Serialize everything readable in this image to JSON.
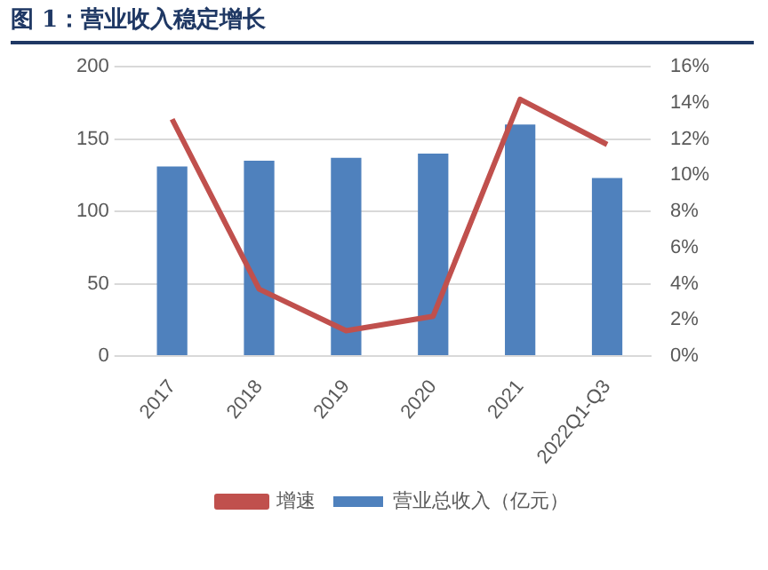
{
  "chart_data": {
    "type": "bar",
    "title": "图 1：营业收入稳定增长",
    "categories": [
      "2017",
      "2018",
      "2019",
      "2020",
      "2021",
      "2022Q1-Q3"
    ],
    "series": [
      {
        "name": "营业总收入（亿元）",
        "color": "#4f81bd",
        "values": [
          131,
          135,
          137,
          140,
          160,
          123
        ]
      },
      {
        "name": "增速",
        "type": "line",
        "axis": "y2",
        "color": "#c0504d",
        "values": [
          13.1,
          3.7,
          1.4,
          2.2,
          14.2,
          11.7
        ]
      }
    ],
    "ylim": [
      0,
      200
    ],
    "yticks": [
      0,
      50,
      100,
      150,
      200
    ],
    "y2lim": [
      0,
      16
    ],
    "y2ticks": [
      {
        "value": 0,
        "label": "0%"
      },
      {
        "value": 2,
        "label": "2%"
      },
      {
        "value": 4,
        "label": "4%"
      },
      {
        "value": 6,
        "label": "6%"
      },
      {
        "value": 8,
        "label": "8%"
      },
      {
        "value": 10,
        "label": "10%"
      },
      {
        "value": 12,
        "label": "12%"
      },
      {
        "value": 14,
        "label": "14%"
      },
      {
        "value": 16,
        "label": "16%"
      }
    ],
    "grid": "y",
    "legend": "bottom",
    "marker": "none"
  }
}
